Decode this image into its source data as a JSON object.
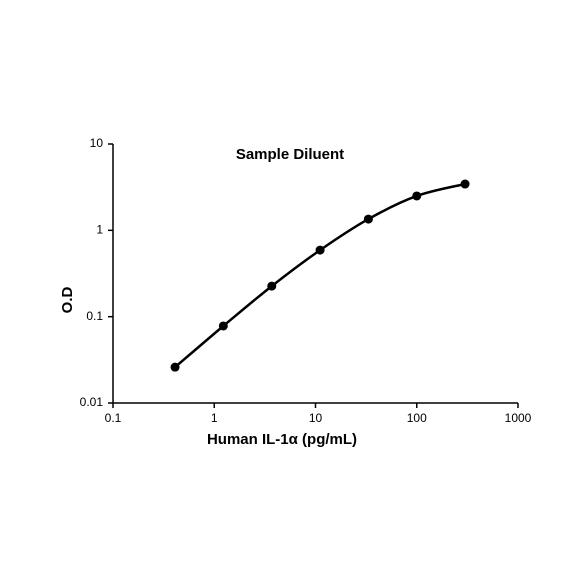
{
  "chart_data": {
    "type": "line",
    "title": "Sample Diluent",
    "x_label": "Human IL-1α (pg/mL)",
    "y_label": "O.D",
    "x": [
      0.41,
      1.23,
      3.7,
      11.1,
      33.3,
      100,
      300
    ],
    "series": [
      {
        "name": "Sample Diluent",
        "color": "#000000",
        "values": [
          0.026,
          0.078,
          0.226,
          0.59,
          1.35,
          2.5,
          3.44
        ]
      }
    ],
    "xlim": [
      0.1,
      1000
    ],
    "ylim": [
      0.01,
      10
    ],
    "xticks": [
      0.1,
      1,
      10,
      100,
      1000
    ],
    "yticks": [
      0.01,
      0.1,
      1,
      10
    ],
    "xscale": "log",
    "yscale": "log",
    "grid": false
  }
}
